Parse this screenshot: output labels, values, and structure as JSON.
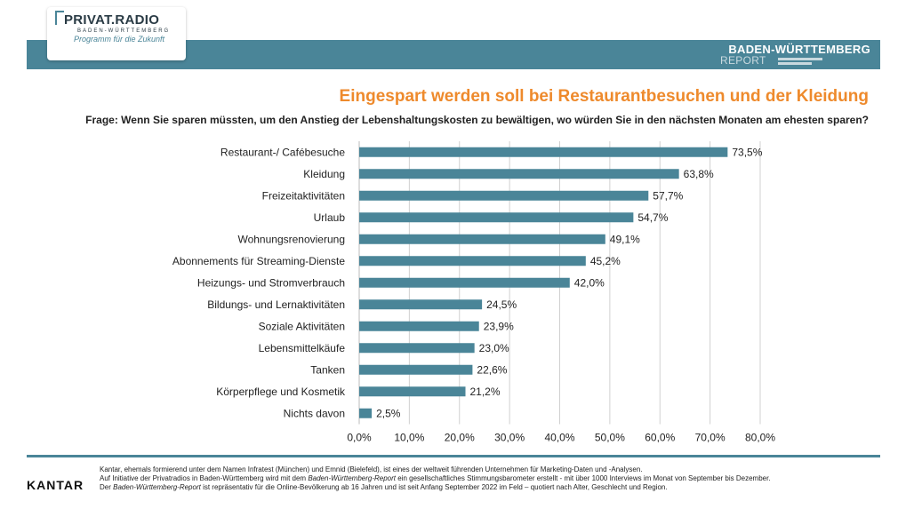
{
  "header": {
    "logo_main": "PRIVAT.RADIO",
    "logo_sub": "BADEN-WÜRTTEMBERG",
    "logo_tagline": "Programm für die Zukunft",
    "report_title": "BADEN-WÜRTTEMBERG",
    "report_sub": "REPORT"
  },
  "headline": "Eingespart werden soll bei Restaurantbesuchen und der Kleidung",
  "question": "Frage: Wenn Sie sparen müssten, um den Anstieg der Lebenshaltungskosten zu bewältigen, wo würden Sie in den nächsten Monaten am ehesten sparen?",
  "colors": {
    "accent": "#4a8598",
    "headline": "#ee8a2c",
    "bar": "#4a8598"
  },
  "chart_data": {
    "type": "bar",
    "orientation": "horizontal",
    "categories": [
      "Restaurant-/ Cafébesuche",
      "Kleidung",
      "Freizeitaktivitäten",
      "Urlaub",
      "Wohnungsrenovierung",
      "Abonnements für Streaming-Dienste",
      "Heizungs- und Stromverbrauch",
      "Bildungs- und Lernaktivitäten",
      "Soziale Aktivitäten",
      "Lebensmittelkäufe",
      "Tanken",
      "Körperpflege und Kosmetik",
      "Nichts davon"
    ],
    "values": [
      73.5,
      63.8,
      57.7,
      54.7,
      49.1,
      45.2,
      42.0,
      24.5,
      23.9,
      23.0,
      22.6,
      21.2,
      2.5
    ],
    "value_labels": [
      "73,5%",
      "63,8%",
      "57,7%",
      "54,7%",
      "49,1%",
      "45,2%",
      "42,0%",
      "24,5%",
      "23,9%",
      "23,0%",
      "22,6%",
      "21,2%",
      "2,5%"
    ],
    "xlim": [
      0,
      80
    ],
    "xticks": [
      "0,0%",
      "10,0%",
      "20,0%",
      "30,0%",
      "40,0%",
      "50,0%",
      "60,0%",
      "70,0%",
      "80,0%"
    ],
    "grid": true
  },
  "footer": {
    "brand": "KANTAR",
    "line1": "Kantar, ehemals formierend unter dem Namen Infratest (München) und Emnid (Bielefeld), ist eines der weltweit führenden Unternehmen für Marketing-Daten und -Analysen.",
    "line2_a": "Auf Initiative der Privatradios in Baden-Württemberg wird mit dem ",
    "line2_b": "Baden-Württemberg-Report",
    "line2_c": " ein gesellschaftliches Stimmungsbarometer erstellt - mit über 1000 Interviews im Monat von September bis Dezember.",
    "line3_a": "Der ",
    "line3_b": "Baden-Württemberg-Report",
    "line3_c": " ist repräsentativ für die Online-Bevölkerung ab 16 Jahren und ist seit Anfang September 2022 im Feld – quotiert nach Alter, Geschlecht und Region."
  }
}
